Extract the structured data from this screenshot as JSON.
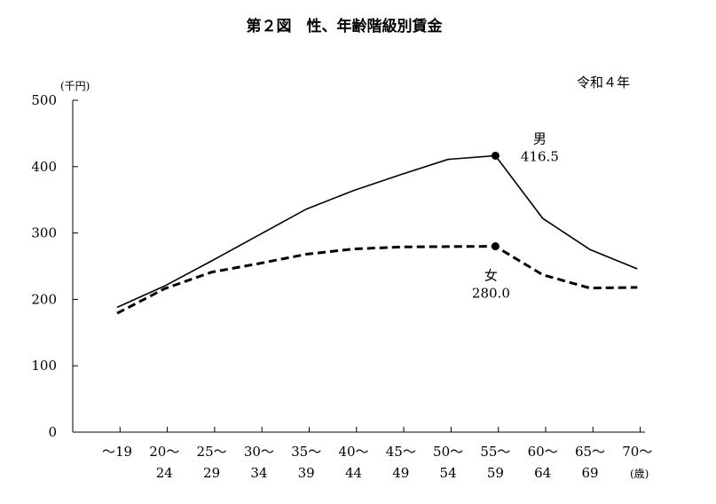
{
  "chart_data": {
    "type": "line",
    "title": "第２図　性、年齢階級別賃金",
    "subtitle": "令和４年",
    "y_unit": "(千円)",
    "x_unit": "(歳)",
    "ylim": [
      0,
      500
    ],
    "y_ticks": [
      "0",
      "100",
      "200",
      "300",
      "400",
      "500"
    ],
    "categories": [
      {
        "line1": "～19",
        "line2": ""
      },
      {
        "line1": "20～",
        "line2": "24"
      },
      {
        "line1": "25～",
        "line2": "29"
      },
      {
        "line1": "30～",
        "line2": "34"
      },
      {
        "line1": "35～",
        "line2": "39"
      },
      {
        "line1": "40～",
        "line2": "44"
      },
      {
        "line1": "45～",
        "line2": "49"
      },
      {
        "line1": "50～",
        "line2": "54"
      },
      {
        "line1": "55～",
        "line2": "59"
      },
      {
        "line1": "60～",
        "line2": "64"
      },
      {
        "line1": "65～",
        "line2": "69"
      },
      {
        "line1": "70～",
        "line2": ""
      }
    ],
    "series": [
      {
        "name": "男",
        "style": "solid",
        "color": "#000000",
        "values": [
          188,
          220,
          258,
          297,
          336,
          364,
          388,
          411,
          416.5,
          322,
          275,
          246
        ],
        "highlight_index": 8,
        "highlight_label": "416.5"
      },
      {
        "name": "女",
        "style": "dashed",
        "color": "#000000",
        "values": [
          179,
          216,
          241,
          254,
          268,
          276,
          279,
          279.5,
          280.0,
          237,
          217,
          218
        ],
        "highlight_index": 8,
        "highlight_label": "280.0"
      }
    ],
    "grid": false,
    "legend": "inline-labels"
  }
}
